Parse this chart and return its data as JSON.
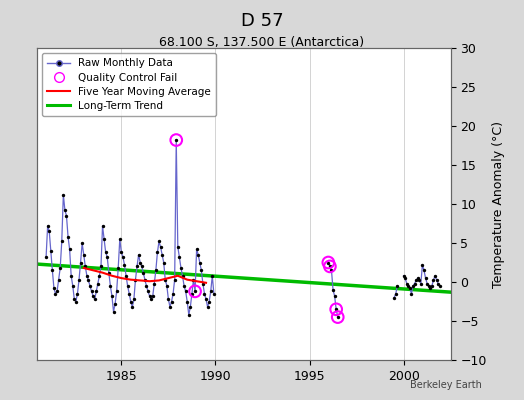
{
  "title": "D 57",
  "subtitle": "68.100 S, 137.500 E (Antarctica)",
  "ylabel_right": "Temperature Anomaly (°C)",
  "watermark": "Berkeley Earth",
  "ylim": [
    -10,
    30
  ],
  "xlim": [
    1980.5,
    2002.5
  ],
  "yticks": [
    -10,
    -5,
    0,
    5,
    10,
    15,
    20,
    25,
    30
  ],
  "xticks": [
    1985,
    1990,
    1995,
    2000
  ],
  "bg_color": "#d8d8d8",
  "plot_bg_color": "#ffffff",
  "grid_color": "#cccccc",
  "raw_line_color": "#6666cc",
  "raw_dot_color": "#000000",
  "qc_fail_color": "#ff00ff",
  "moving_avg_color": "#ff0000",
  "trend_color": "#00bb00",
  "raw_monthly": [
    [
      1981.0,
      3.2
    ],
    [
      1981.083,
      7.2
    ],
    [
      1981.167,
      6.5
    ],
    [
      1981.25,
      4.0
    ],
    [
      1981.333,
      1.5
    ],
    [
      1981.417,
      -0.8
    ],
    [
      1981.5,
      -1.5
    ],
    [
      1981.583,
      -1.2
    ],
    [
      1981.667,
      0.3
    ],
    [
      1981.75,
      1.8
    ],
    [
      1981.833,
      5.2
    ],
    [
      1981.917,
      11.2
    ],
    [
      1982.0,
      9.2
    ],
    [
      1982.083,
      8.5
    ],
    [
      1982.167,
      5.8
    ],
    [
      1982.25,
      4.2
    ],
    [
      1982.333,
      0.8
    ],
    [
      1982.417,
      -0.5
    ],
    [
      1982.5,
      -2.2
    ],
    [
      1982.583,
      -2.5
    ],
    [
      1982.667,
      -1.5
    ],
    [
      1982.75,
      0.3
    ],
    [
      1982.833,
      2.5
    ],
    [
      1982.917,
      5.0
    ],
    [
      1983.0,
      3.5
    ],
    [
      1983.083,
      2.0
    ],
    [
      1983.167,
      0.8
    ],
    [
      1983.25,
      0.2
    ],
    [
      1983.333,
      -0.5
    ],
    [
      1983.417,
      -1.2
    ],
    [
      1983.5,
      -1.8
    ],
    [
      1983.583,
      -2.2
    ],
    [
      1983.667,
      -1.2
    ],
    [
      1983.75,
      -0.2
    ],
    [
      1983.833,
      0.8
    ],
    [
      1983.917,
      2.0
    ],
    [
      1984.0,
      7.2
    ],
    [
      1984.083,
      5.5
    ],
    [
      1984.167,
      3.8
    ],
    [
      1984.25,
      3.2
    ],
    [
      1984.333,
      1.2
    ],
    [
      1984.417,
      -0.5
    ],
    [
      1984.5,
      -1.8
    ],
    [
      1984.583,
      -3.8
    ],
    [
      1984.667,
      -2.8
    ],
    [
      1984.75,
      -1.2
    ],
    [
      1984.833,
      1.8
    ],
    [
      1984.917,
      5.5
    ],
    [
      1985.0,
      3.8
    ],
    [
      1985.083,
      3.2
    ],
    [
      1985.167,
      2.2
    ],
    [
      1985.25,
      0.8
    ],
    [
      1985.333,
      -0.5
    ],
    [
      1985.417,
      -1.5
    ],
    [
      1985.5,
      -2.5
    ],
    [
      1985.583,
      -3.2
    ],
    [
      1985.667,
      -2.2
    ],
    [
      1985.75,
      0.3
    ],
    [
      1985.833,
      2.0
    ],
    [
      1985.917,
      3.5
    ],
    [
      1986.0,
      2.5
    ],
    [
      1986.083,
      2.0
    ],
    [
      1986.167,
      1.2
    ],
    [
      1986.25,
      0.3
    ],
    [
      1986.333,
      -0.5
    ],
    [
      1986.417,
      -1.2
    ],
    [
      1986.5,
      -1.8
    ],
    [
      1986.583,
      -2.2
    ],
    [
      1986.667,
      -1.8
    ],
    [
      1986.75,
      -0.2
    ],
    [
      1986.833,
      1.5
    ],
    [
      1986.917,
      3.8
    ],
    [
      1987.0,
      5.2
    ],
    [
      1987.083,
      4.5
    ],
    [
      1987.167,
      3.5
    ],
    [
      1987.25,
      2.5
    ],
    [
      1987.333,
      0.3
    ],
    [
      1987.417,
      -0.5
    ],
    [
      1987.5,
      -2.2
    ],
    [
      1987.583,
      -3.2
    ],
    [
      1987.667,
      -2.5
    ],
    [
      1987.75,
      -1.5
    ],
    [
      1987.833,
      0.3
    ],
    [
      1987.917,
      18.2
    ],
    [
      1988.0,
      4.5
    ],
    [
      1988.083,
      3.2
    ],
    [
      1988.167,
      1.8
    ],
    [
      1988.25,
      0.8
    ],
    [
      1988.333,
      -0.5
    ],
    [
      1988.417,
      -1.2
    ],
    [
      1988.5,
      -2.5
    ],
    [
      1988.583,
      -4.2
    ],
    [
      1988.667,
      -3.2
    ],
    [
      1988.75,
      -1.5
    ],
    [
      1988.833,
      0.3
    ],
    [
      1988.917,
      -1.2
    ],
    [
      1989.0,
      4.2
    ],
    [
      1989.083,
      3.5
    ],
    [
      1989.167,
      2.5
    ],
    [
      1989.25,
      1.5
    ],
    [
      1989.333,
      -0.2
    ],
    [
      1989.417,
      -1.5
    ],
    [
      1989.5,
      -2.2
    ],
    [
      1989.583,
      -3.2
    ],
    [
      1989.667,
      -2.5
    ],
    [
      1989.75,
      -1.2
    ],
    [
      1989.833,
      0.8
    ],
    [
      1989.917,
      -1.5
    ],
    [
      1996.0,
      2.5
    ],
    [
      1996.083,
      2.0
    ],
    [
      1996.167,
      1.5
    ],
    [
      1996.25,
      -1.0
    ],
    [
      1996.333,
      -1.8
    ],
    [
      1996.417,
      -3.5
    ],
    [
      1996.5,
      -4.5
    ],
    [
      1999.5,
      -2.0
    ],
    [
      1999.583,
      -1.5
    ],
    [
      1999.667,
      -0.5
    ],
    [
      2000.0,
      0.8
    ],
    [
      2000.083,
      0.5
    ],
    [
      2000.167,
      -0.2
    ],
    [
      2000.25,
      -0.5
    ],
    [
      2000.333,
      -0.8
    ],
    [
      2000.417,
      -1.5
    ],
    [
      2000.5,
      -0.5
    ],
    [
      2000.583,
      -0.2
    ],
    [
      2000.667,
      0.2
    ],
    [
      2000.75,
      0.5
    ],
    [
      2000.833,
      0.2
    ],
    [
      2000.917,
      -0.2
    ],
    [
      2001.0,
      2.2
    ],
    [
      2001.083,
      1.5
    ],
    [
      2001.167,
      0.5
    ],
    [
      2001.25,
      -0.2
    ],
    [
      2001.333,
      -0.5
    ],
    [
      2001.417,
      -0.8
    ],
    [
      2001.5,
      -0.5
    ],
    [
      2001.583,
      0.2
    ],
    [
      2001.667,
      0.8
    ],
    [
      2001.75,
      0.3
    ],
    [
      2001.833,
      -0.2
    ],
    [
      2001.917,
      -0.5
    ]
  ],
  "qc_fail_points": [
    [
      1987.917,
      18.2
    ],
    [
      1988.917,
      -1.2
    ],
    [
      1996.0,
      2.5
    ],
    [
      1996.083,
      2.0
    ],
    [
      1996.417,
      -3.5
    ],
    [
      1996.5,
      -4.5
    ]
  ],
  "moving_avg": [
    [
      1983.0,
      1.8
    ],
    [
      1983.5,
      1.5
    ],
    [
      1984.0,
      1.2
    ],
    [
      1984.5,
      0.8
    ],
    [
      1985.0,
      0.5
    ],
    [
      1985.5,
      0.3
    ],
    [
      1986.0,
      0.2
    ],
    [
      1986.5,
      0.1
    ],
    [
      1987.0,
      0.2
    ],
    [
      1987.5,
      0.5
    ],
    [
      1988.0,
      0.8
    ],
    [
      1988.5,
      0.3
    ],
    [
      1989.0,
      0.1
    ],
    [
      1989.5,
      -0.1
    ]
  ],
  "trend_x": [
    1980.5,
    2002.5
  ],
  "trend_y": [
    2.3,
    -1.3
  ]
}
